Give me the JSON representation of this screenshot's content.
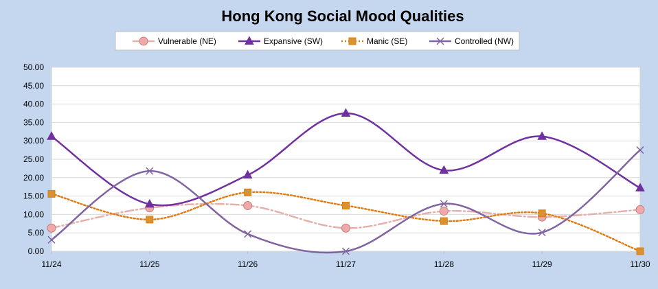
{
  "chart_data": {
    "type": "line",
    "title": "Hong Kong  Social Mood Qualities",
    "xlabel": "",
    "ylabel": "",
    "categories": [
      "11/24",
      "11/25",
      "11/26",
      "11/27",
      "11/28",
      "11/29",
      "11/30"
    ],
    "ylim": [
      0,
      50
    ],
    "yticks": [
      "0.00",
      "5.00",
      "10.00",
      "15.00",
      "20.00",
      "25.00",
      "30.00",
      "35.00",
      "40.00",
      "45.00",
      "50.00"
    ],
    "grid": true,
    "legend_position": "top",
    "background_color": "#c5d7ef",
    "plot_background_color": "#ffffff",
    "series": [
      {
        "name": "Vulnerable (NE)",
        "values": [
          6.3,
          11.8,
          12.4,
          6.3,
          10.9,
          9.3,
          11.3
        ],
        "color": "#e6b0aa",
        "marker_fill": "#f0a8a8",
        "marker": "circle",
        "line_style": "dashdot"
      },
      {
        "name": "Expansive (SW)",
        "values": [
          31.2,
          12.8,
          20.7,
          37.5,
          22.0,
          31.2,
          17.2
        ],
        "color": "#7030a0",
        "marker_fill": "#7030a0",
        "marker": "triangle",
        "line_style": "solid"
      },
      {
        "name": "Manic (SE)",
        "values": [
          15.6,
          8.6,
          16.0,
          12.4,
          8.2,
          10.3,
          0.0
        ],
        "color": "#e07b14",
        "marker_fill": "#d8922f",
        "marker": "square",
        "line_style": "dotted"
      },
      {
        "name": "Controlled (NW)",
        "values": [
          3.1,
          21.8,
          4.7,
          0.0,
          12.9,
          5.1,
          27.5
        ],
        "color": "#8064a2",
        "marker_fill": "#8064a2",
        "marker": "x",
        "line_style": "solid"
      }
    ]
  }
}
